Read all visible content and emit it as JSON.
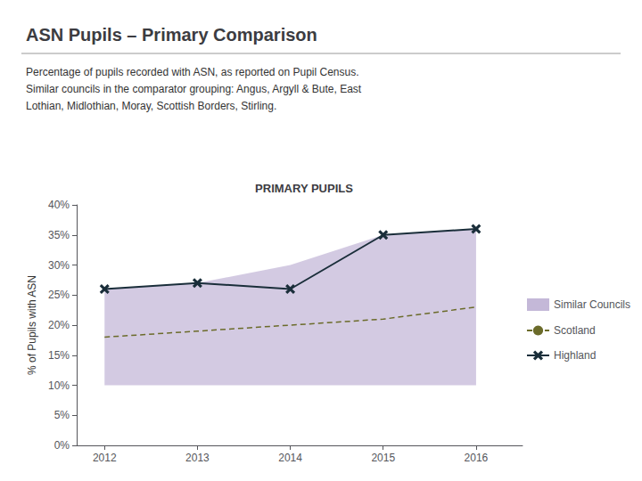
{
  "chart_data": {
    "type": "line",
    "title": "PRIMARY PUPILS",
    "annotations": [
      "ASN Pupils – Primary Comparison"
    ],
    "subtitle": [
      "Percentage of pupils recorded with ASN, as reported on Pupil Census.",
      "Similar councils in the comparator grouping: Angus, Argyll & Bute, East",
      "Lothian, Midlothian, Moray, Scottish Borders, Stirling."
    ],
    "ylabel": "% of Pupils with ASN",
    "x": [
      2012,
      2013,
      2014,
      2015,
      2016
    ],
    "xlim": [
      2011.7,
      2016.5
    ],
    "xticks": [
      2012,
      2013,
      2014,
      2015,
      2016
    ],
    "ylim": [
      0,
      40
    ],
    "yticks": [
      {
        "value": 0,
        "label": "0%"
      },
      {
        "value": 5,
        "label": "5%"
      },
      {
        "value": 10,
        "label": "10%"
      },
      {
        "value": 15,
        "label": "15%"
      },
      {
        "value": 20,
        "label": "20%"
      },
      {
        "value": 25,
        "label": "25%"
      },
      {
        "value": 30,
        "label": "30%"
      },
      {
        "value": 35,
        "label": "35%"
      },
      {
        "value": 40,
        "label": "40%"
      }
    ],
    "grid": false,
    "legend": "right",
    "series": [
      {
        "name": "Similar Councils",
        "type": "band",
        "color": "#c4b8d8",
        "lower": [
          10,
          10,
          10,
          10,
          10
        ],
        "upper": [
          26,
          27,
          30,
          35,
          36
        ]
      },
      {
        "name": "Scotland",
        "type": "line",
        "color": "#6b6b2a",
        "line_style": "dashed",
        "values": [
          18,
          19,
          20,
          21,
          23
        ]
      },
      {
        "name": "Highland",
        "type": "line",
        "color": "#1a2e3a",
        "marker": "x",
        "values": [
          26,
          27,
          26,
          35,
          36
        ]
      }
    ]
  }
}
